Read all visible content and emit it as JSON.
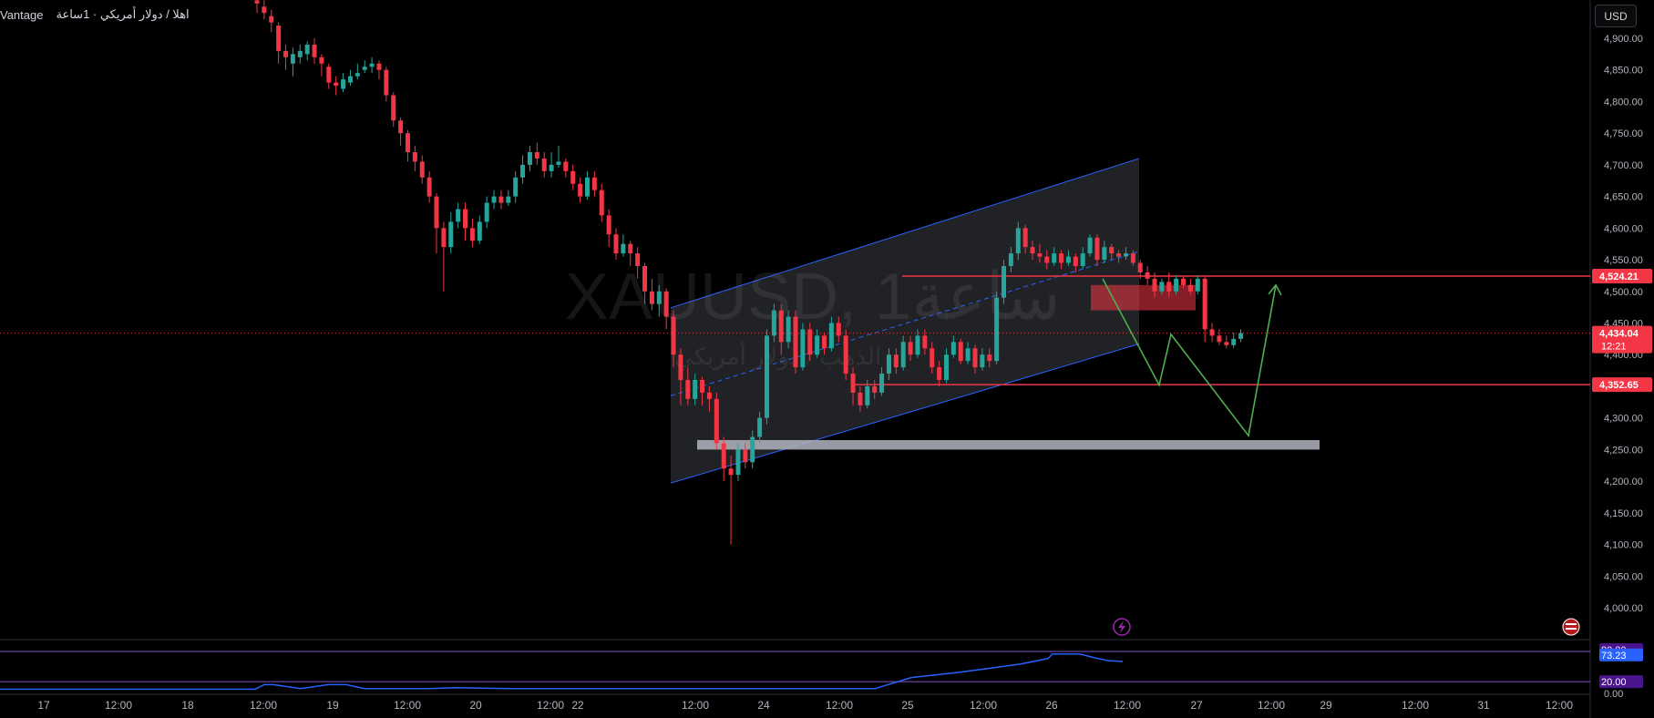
{
  "header": {
    "broker": "Vantage",
    "title_ar": "اهلا / دولار أمريكي · 1ساعة"
  },
  "watermark": {
    "symbol": "XAUUSD, 1ساعة",
    "subtitle": "الذهب / دولار أمريكي"
  },
  "currency_button": "USD",
  "colors": {
    "up": "#26a69a",
    "down": "#f23645",
    "channel": "#2962ff",
    "zone": "#787b86",
    "arrow": "#4caf50",
    "rsi": "#2962ff",
    "rsi_band": "#7e57c2"
  },
  "chart_data": {
    "type": "candlestick",
    "symbol": "XAUUSD",
    "interval": "1h",
    "ylim": [
      3960,
      4960
    ],
    "price_ticks": [
      4900,
      4850,
      4800,
      4750,
      4700,
      4650,
      4600,
      4550,
      4500,
      4450,
      4400,
      4350,
      4300,
      4250,
      4200,
      4150,
      4100,
      4050,
      4000
    ],
    "price_tick_labels": [
      "4,900.00",
      "4,850.00",
      "4,800.00",
      "4,750.00",
      "4,700.00",
      "4,650.00",
      "4,600.00",
      "4,550.00",
      "4,500.00",
      "4,450.00",
      "4,400.00",
      "4,350.00",
      "4,300.00",
      "4,250.00",
      "4,200.00",
      "4,150.00",
      "4,100.00",
      "4,050.00",
      "4,000.00"
    ],
    "time_labels": [
      "17",
      "12:00",
      "18",
      "12:00",
      "19",
      "12:00",
      "20",
      "12:00",
      "22",
      "12:00",
      "24",
      "12:00",
      "25",
      "12:00",
      "26",
      "12:00",
      "27",
      "12:00",
      "29",
      "12:00",
      "31",
      "12:00"
    ],
    "price_tags": [
      {
        "label": "4,524.21",
        "value": 4524.21
      },
      {
        "label": "4,434.04",
        "value": 4434.04,
        "sub": "12:21"
      },
      {
        "label": "4,352.65",
        "value": 4352.65
      }
    ],
    "current_price": 4434.04,
    "countdown": "12:21",
    "candles": [
      [
        4960,
        4955,
        4970,
        4940
      ],
      [
        4950,
        4940,
        4960,
        4930
      ],
      [
        4935,
        4925,
        4945,
        4910
      ],
      [
        4920,
        4880,
        4925,
        4860
      ],
      [
        4880,
        4870,
        4890,
        4850
      ],
      [
        4860,
        4875,
        4885,
        4840
      ],
      [
        4870,
        4880,
        4890,
        4860
      ],
      [
        4875,
        4890,
        4895,
        4865
      ],
      [
        4890,
        4870,
        4900,
        4860
      ],
      [
        4870,
        4860,
        4875,
        4840
      ],
      [
        4855,
        4830,
        4860,
        4820
      ],
      [
        4830,
        4825,
        4840,
        4810
      ],
      [
        4820,
        4835,
        4845,
        4815
      ],
      [
        4830,
        4840,
        4850,
        4825
      ],
      [
        4840,
        4845,
        4860,
        4835
      ],
      [
        4850,
        4855,
        4865,
        4845
      ],
      [
        4855,
        4860,
        4870,
        4845
      ],
      [
        4860,
        4850,
        4865,
        4835
      ],
      [
        4850,
        4810,
        4855,
        4800
      ],
      [
        4810,
        4770,
        4815,
        4760
      ],
      [
        4770,
        4750,
        4775,
        4730
      ],
      [
        4750,
        4720,
        4755,
        4705
      ],
      [
        4720,
        4705,
        4730,
        4690
      ],
      [
        4705,
        4680,
        4715,
        4670
      ],
      [
        4680,
        4650,
        4690,
        4640
      ],
      [
        4650,
        4600,
        4655,
        4560
      ],
      [
        4600,
        4570,
        4610,
        4500
      ],
      [
        4570,
        4610,
        4625,
        4560
      ],
      [
        4610,
        4630,
        4640,
        4600
      ],
      [
        4630,
        4600,
        4640,
        4580
      ],
      [
        4600,
        4580,
        4615,
        4570
      ],
      [
        4580,
        4610,
        4620,
        4575
      ],
      [
        4610,
        4640,
        4650,
        4600
      ],
      [
        4640,
        4650,
        4660,
        4630
      ],
      [
        4650,
        4640,
        4660,
        4630
      ],
      [
        4640,
        4650,
        4660,
        4635
      ],
      [
        4650,
        4680,
        4690,
        4640
      ],
      [
        4680,
        4700,
        4715,
        4670
      ],
      [
        4700,
        4720,
        4730,
        4690
      ],
      [
        4720,
        4710,
        4735,
        4700
      ],
      [
        4710,
        4690,
        4720,
        4680
      ],
      [
        4690,
        4700,
        4720,
        4680
      ],
      [
        4700,
        4705,
        4730,
        4695
      ],
      [
        4705,
        4690,
        4710,
        4680
      ],
      [
        4690,
        4670,
        4700,
        4660
      ],
      [
        4670,
        4650,
        4680,
        4640
      ],
      [
        4650,
        4680,
        4690,
        4645
      ],
      [
        4680,
        4660,
        4690,
        4650
      ],
      [
        4660,
        4620,
        4670,
        4610
      ],
      [
        4620,
        4590,
        4630,
        4570
      ],
      [
        4590,
        4560,
        4600,
        4550
      ],
      [
        4560,
        4575,
        4590,
        4555
      ],
      [
        4575,
        4560,
        4580,
        4540
      ],
      [
        4560,
        4540,
        4570,
        4520
      ],
      [
        4540,
        4500,
        4545,
        4480
      ],
      [
        4500,
        4480,
        4520,
        4470
      ],
      [
        4480,
        4500,
        4510,
        4460
      ],
      [
        4500,
        4460,
        4505,
        4440
      ],
      [
        4460,
        4400,
        4470,
        4380
      ],
      [
        4400,
        4360,
        4410,
        4320
      ],
      [
        4360,
        4330,
        4380,
        4320
      ],
      [
        4330,
        4360,
        4370,
        4320
      ],
      [
        4360,
        4340,
        4365,
        4320
      ],
      [
        4340,
        4330,
        4350,
        4310
      ],
      [
        4330,
        4260,
        4340,
        4250
      ],
      [
        4260,
        4220,
        4270,
        4200
      ],
      [
        4220,
        4210,
        4240,
        4100
      ],
      [
        4210,
        4250,
        4260,
        4200
      ],
      [
        4250,
        4230,
        4260,
        4220
      ],
      [
        4230,
        4270,
        4280,
        4220
      ],
      [
        4270,
        4300,
        4310,
        4260
      ],
      [
        4300,
        4430,
        4440,
        4290
      ],
      [
        4430,
        4470,
        4480,
        4420
      ],
      [
        4470,
        4420,
        4480,
        4400
      ],
      [
        4420,
        4460,
        4470,
        4410
      ],
      [
        4460,
        4380,
        4470,
        4370
      ],
      [
        4380,
        4440,
        4450,
        4375
      ],
      [
        4440,
        4400,
        4450,
        4390
      ],
      [
        4400,
        4430,
        4440,
        4395
      ],
      [
        4430,
        4410,
        4435,
        4400
      ],
      [
        4410,
        4450,
        4460,
        4405
      ],
      [
        4450,
        4430,
        4460,
        4420
      ],
      [
        4430,
        4370,
        4440,
        4360
      ],
      [
        4370,
        4340,
        4380,
        4320
      ],
      [
        4340,
        4320,
        4350,
        4310
      ],
      [
        4320,
        4350,
        4360,
        4315
      ],
      [
        4350,
        4340,
        4360,
        4330
      ],
      [
        4340,
        4370,
        4380,
        4335
      ],
      [
        4370,
        4400,
        4410,
        4360
      ],
      [
        4400,
        4380,
        4410,
        4370
      ],
      [
        4380,
        4420,
        4430,
        4375
      ],
      [
        4420,
        4400,
        4430,
        4390
      ],
      [
        4400,
        4430,
        4440,
        4395
      ],
      [
        4430,
        4410,
        4440,
        4400
      ],
      [
        4410,
        4380,
        4420,
        4370
      ],
      [
        4380,
        4360,
        4390,
        4350
      ],
      [
        4360,
        4400,
        4410,
        4355
      ],
      [
        4400,
        4420,
        4430,
        4395
      ],
      [
        4420,
        4390,
        4425,
        4385
      ],
      [
        4390,
        4410,
        4420,
        4385
      ],
      [
        4410,
        4380,
        4415,
        4370
      ],
      [
        4380,
        4400,
        4410,
        4375
      ],
      [
        4400,
        4390,
        4410,
        4380
      ],
      [
        4390,
        4490,
        4500,
        4385
      ],
      [
        4490,
        4540,
        4550,
        4480
      ],
      [
        4540,
        4560,
        4570,
        4530
      ],
      [
        4560,
        4600,
        4610,
        4550
      ],
      [
        4600,
        4570,
        4605,
        4560
      ],
      [
        4570,
        4560,
        4580,
        4550
      ],
      [
        4560,
        4555,
        4575,
        4545
      ],
      [
        4555,
        4545,
        4565,
        4535
      ],
      [
        4545,
        4560,
        4570,
        4540
      ],
      [
        4560,
        4545,
        4565,
        4535
      ],
      [
        4545,
        4555,
        4565,
        4540
      ],
      [
        4555,
        4540,
        4560,
        4530
      ],
      [
        4540,
        4560,
        4570,
        4535
      ],
      [
        4560,
        4585,
        4590,
        4555
      ],
      [
        4585,
        4550,
        4590,
        4540
      ],
      [
        4550,
        4570,
        4580,
        4545
      ],
      [
        4570,
        4560,
        4575,
        4550
      ],
      [
        4560,
        4555,
        4565,
        4545
      ],
      [
        4555,
        4560,
        4570,
        4550
      ],
      [
        4560,
        4545,
        4565,
        4540
      ],
      [
        4545,
        4530,
        4550,
        4520
      ],
      [
        4530,
        4520,
        4540,
        4510
      ],
      [
        4520,
        4500,
        4530,
        4490
      ],
      [
        4500,
        4515,
        4520,
        4495
      ],
      [
        4515,
        4500,
        4530,
        4490
      ],
      [
        4500,
        4520,
        4525,
        4495
      ],
      [
        4520,
        4510,
        4525,
        4505
      ],
      [
        4510,
        4500,
        4520,
        4495
      ],
      [
        4500,
        4520,
        4525,
        4495
      ],
      [
        4520,
        4440,
        4525,
        4420
      ],
      [
        4440,
        4430,
        4450,
        4420
      ],
      [
        4430,
        4420,
        4440,
        4415
      ],
      [
        4420,
        4415,
        4430,
        4410
      ],
      [
        4415,
        4425,
        4435,
        4410
      ],
      [
        4425,
        4434,
        4440,
        4420
      ]
    ],
    "annotations": [
      {
        "type": "channel",
        "color": "#2962ff"
      },
      {
        "type": "horizontal_line",
        "value": 4524.21,
        "color": "#f23645"
      },
      {
        "type": "horizontal_line",
        "value": 4352.65,
        "color": "#f23645"
      },
      {
        "type": "support_zone",
        "range": [
          4250,
          4265
        ],
        "color": "#787b86"
      },
      {
        "type": "resistance_zone",
        "range": [
          4470,
          4510
        ],
        "color": "#f23645"
      },
      {
        "type": "projection_path",
        "color": "#4caf50"
      }
    ],
    "rsi": {
      "ylim": [
        0,
        100
      ],
      "levels": [
        80,
        20
      ],
      "level_labels": [
        "80.00",
        "20.00"
      ],
      "bottom_label": "0.00",
      "value_label": "73.23",
      "value": 73.23
    }
  }
}
